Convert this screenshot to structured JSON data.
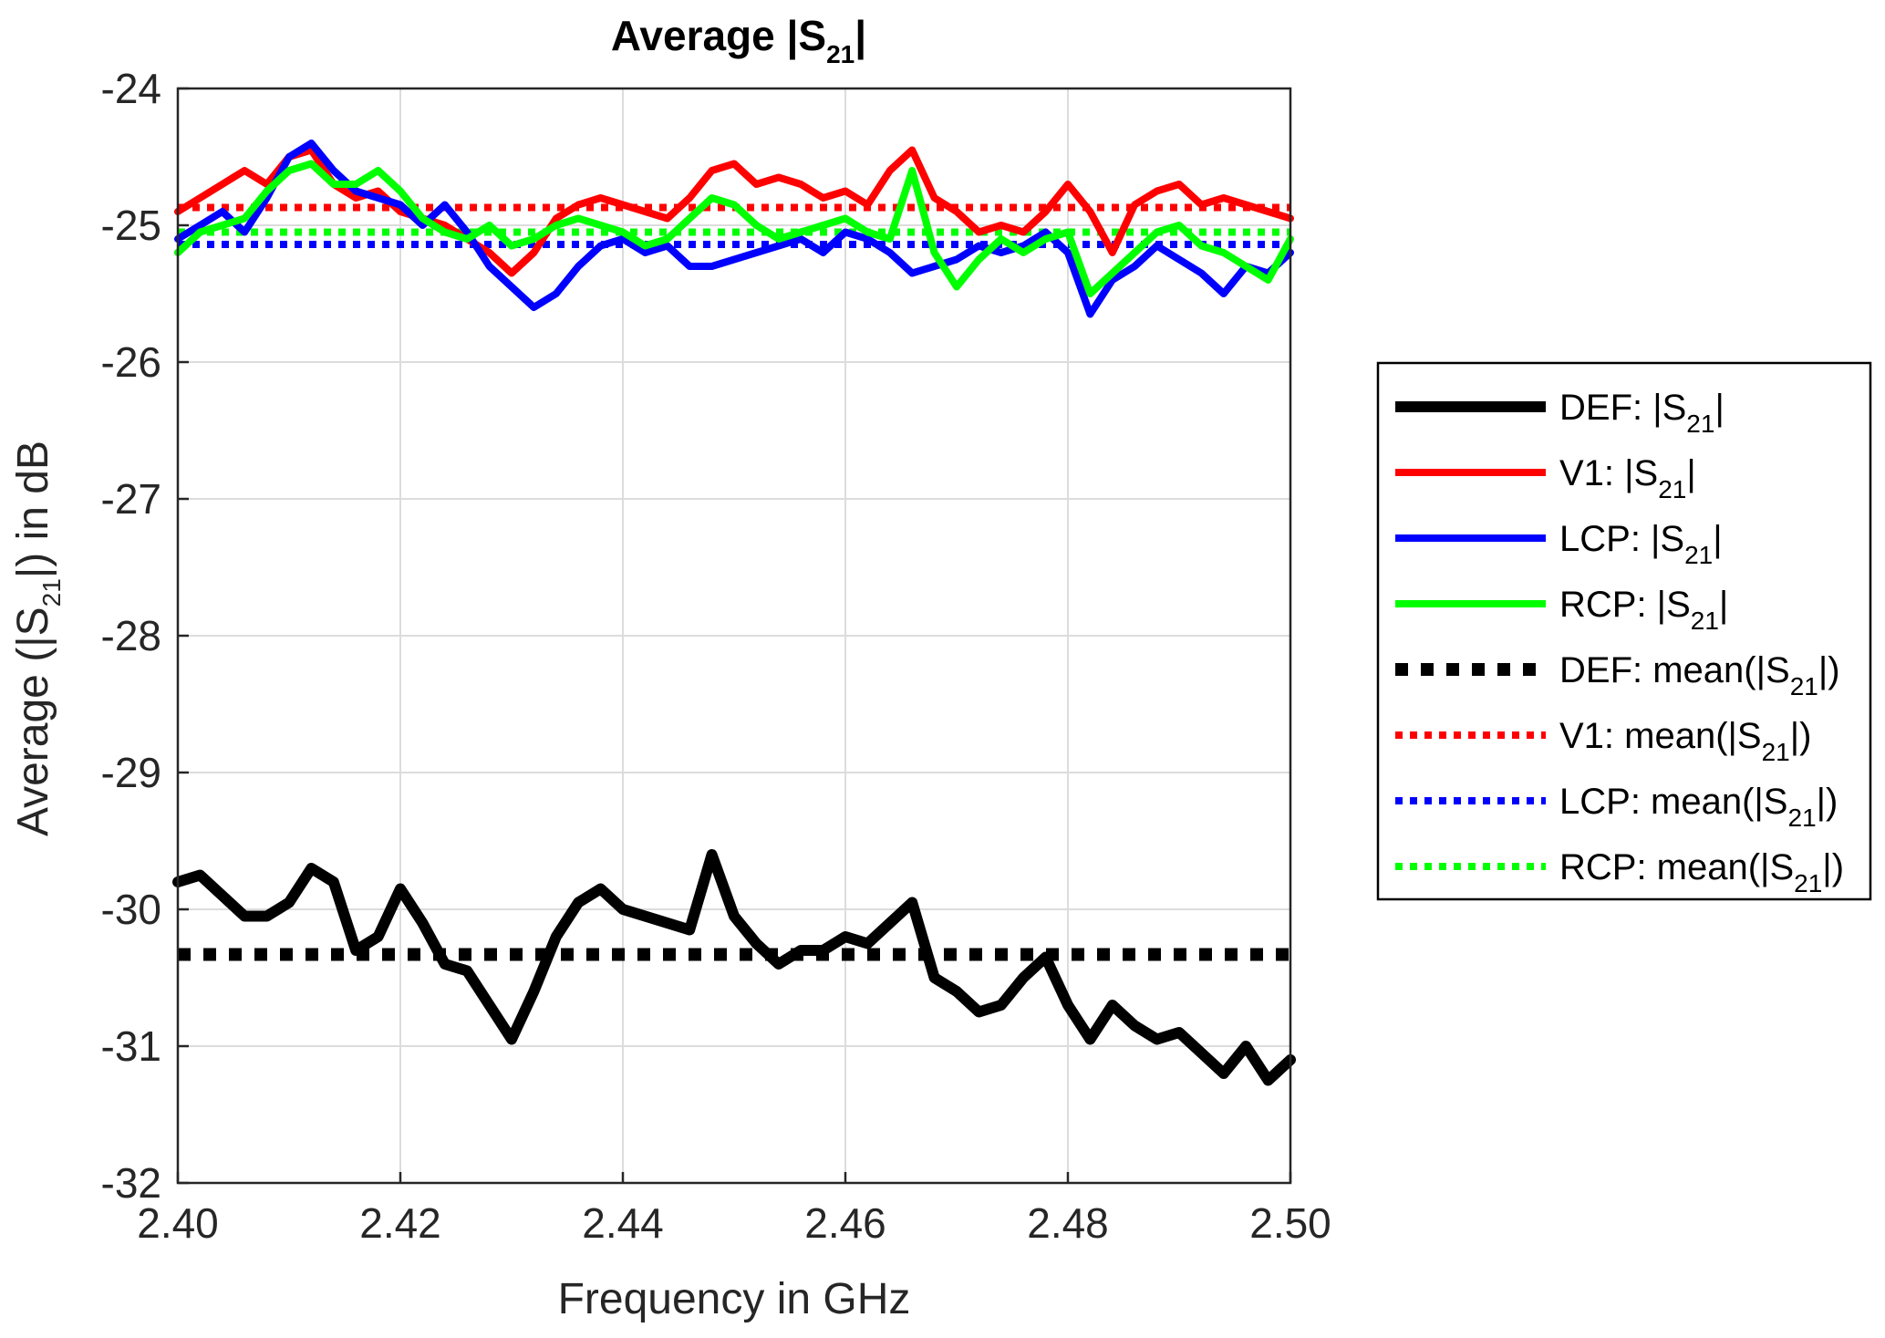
{
  "chart_data": {
    "type": "line",
    "title": {
      "prefix": "Average |S",
      "sub": "21",
      "suffix": "|"
    },
    "xlabel": "Frequency in GHz",
    "ylabel": {
      "prefix": "Average (|S",
      "sub": "21",
      "suffix": "|) in dB"
    },
    "xlim": [
      2.4,
      2.5
    ],
    "ylim": [
      -32,
      -24
    ],
    "grid": true,
    "legend_position": "outside-right",
    "x_ticks": [
      {
        "value": 2.4,
        "label": "2.40"
      },
      {
        "value": 2.42,
        "label": "2.42"
      },
      {
        "value": 2.44,
        "label": "2.44"
      },
      {
        "value": 2.46,
        "label": "2.46"
      },
      {
        "value": 2.48,
        "label": "2.48"
      },
      {
        "value": 2.5,
        "label": "2.50"
      }
    ],
    "y_ticks": [
      {
        "value": -24,
        "label": "-24"
      },
      {
        "value": -25,
        "label": "-25"
      },
      {
        "value": -26,
        "label": "-26"
      },
      {
        "value": -27,
        "label": "-27"
      },
      {
        "value": -28,
        "label": "-28"
      },
      {
        "value": -29,
        "label": "-29"
      },
      {
        "value": -30,
        "label": "-30"
      },
      {
        "value": -31,
        "label": "-31"
      },
      {
        "value": -32,
        "label": "-32"
      }
    ],
    "x": [
      2.4,
      2.402,
      2.404,
      2.406,
      2.408,
      2.41,
      2.412,
      2.414,
      2.416,
      2.418,
      2.42,
      2.422,
      2.424,
      2.426,
      2.428,
      2.43,
      2.432,
      2.434,
      2.436,
      2.438,
      2.44,
      2.442,
      2.444,
      2.446,
      2.448,
      2.45,
      2.452,
      2.454,
      2.456,
      2.458,
      2.46,
      2.462,
      2.464,
      2.466,
      2.468,
      2.47,
      2.472,
      2.474,
      2.476,
      2.478,
      2.48,
      2.482,
      2.484,
      2.486,
      2.488,
      2.49,
      2.492,
      2.494,
      2.496,
      2.498,
      2.5
    ],
    "series": [
      {
        "name": "DEF",
        "kind": "curve",
        "color": "#000000",
        "label": {
          "prefix": "DEF: |S",
          "sub": "21",
          "suffix": "|"
        },
        "values": [
          -29.8,
          -29.75,
          -29.9,
          -30.05,
          -30.05,
          -29.95,
          -29.7,
          -29.8,
          -30.3,
          -30.2,
          -29.85,
          -30.1,
          -30.4,
          -30.45,
          -30.7,
          -30.95,
          -30.6,
          -30.2,
          -29.95,
          -29.85,
          -30.0,
          -30.05,
          -30.1,
          -30.15,
          -29.6,
          -30.05,
          -30.25,
          -30.4,
          -30.3,
          -30.3,
          -30.2,
          -30.25,
          -30.1,
          -29.95,
          -30.5,
          -30.6,
          -30.75,
          -30.7,
          -30.5,
          -30.35,
          -30.7,
          -30.95,
          -30.7,
          -30.85,
          -30.95,
          -30.9,
          -31.05,
          -31.2,
          -31.0,
          -31.25,
          -31.1
        ]
      },
      {
        "name": "V1",
        "kind": "curve",
        "color": "#ff0000",
        "label": {
          "prefix": "V1: |S",
          "sub": "21",
          "suffix": "|"
        },
        "values": [
          -24.9,
          -24.8,
          -24.7,
          -24.6,
          -24.7,
          -24.5,
          -24.45,
          -24.7,
          -24.8,
          -24.75,
          -24.9,
          -24.95,
          -25.0,
          -25.1,
          -25.2,
          -25.35,
          -25.2,
          -24.95,
          -24.85,
          -24.8,
          -24.85,
          -24.9,
          -24.95,
          -24.8,
          -24.6,
          -24.55,
          -24.7,
          -24.65,
          -24.7,
          -24.8,
          -24.75,
          -24.85,
          -24.6,
          -24.45,
          -24.8,
          -24.9,
          -25.05,
          -25.0,
          -25.05,
          -24.9,
          -24.7,
          -24.9,
          -25.2,
          -24.85,
          -24.75,
          -24.7,
          -24.85,
          -24.8,
          -24.85,
          -24.9,
          -24.95
        ]
      },
      {
        "name": "LCP",
        "kind": "curve",
        "color": "#0000ff",
        "label": {
          "prefix": "LCP: |S",
          "sub": "21",
          "suffix": "|"
        },
        "values": [
          -25.1,
          -25.0,
          -24.9,
          -25.05,
          -24.8,
          -24.5,
          -24.4,
          -24.6,
          -24.75,
          -24.8,
          -24.85,
          -25.0,
          -24.85,
          -25.05,
          -25.3,
          -25.45,
          -25.6,
          -25.5,
          -25.3,
          -25.15,
          -25.1,
          -25.2,
          -25.15,
          -25.3,
          -25.3,
          -25.25,
          -25.2,
          -25.15,
          -25.1,
          -25.2,
          -25.05,
          -25.1,
          -25.2,
          -25.35,
          -25.3,
          -25.25,
          -25.15,
          -25.2,
          -25.15,
          -25.05,
          -25.2,
          -25.65,
          -25.4,
          -25.3,
          -25.15,
          -25.25,
          -25.35,
          -25.5,
          -25.3,
          -25.35,
          -25.2
        ]
      },
      {
        "name": "RCP",
        "kind": "curve",
        "color": "#00ff00",
        "label": {
          "prefix": "RCP: |S",
          "sub": "21",
          "suffix": "|"
        },
        "values": [
          -25.2,
          -25.05,
          -25.0,
          -24.95,
          -24.75,
          -24.6,
          -24.55,
          -24.7,
          -24.7,
          -24.6,
          -24.75,
          -24.95,
          -25.05,
          -25.1,
          -25.0,
          -25.15,
          -25.1,
          -25.0,
          -24.95,
          -25.0,
          -25.05,
          -25.15,
          -25.1,
          -24.95,
          -24.8,
          -24.85,
          -25.0,
          -25.1,
          -25.05,
          -25.0,
          -24.95,
          -25.05,
          -25.1,
          -24.6,
          -25.2,
          -25.45,
          -25.25,
          -25.1,
          -25.2,
          -25.1,
          -25.05,
          -25.5,
          -25.35,
          -25.2,
          -25.05,
          -25.0,
          -25.15,
          -25.2,
          -25.3,
          -25.4,
          -25.1
        ]
      },
      {
        "name": "DEF mean",
        "kind": "mean",
        "color": "#000000",
        "label": {
          "prefix": "DEF: mean(|S",
          "sub": "21",
          "suffix": "|)"
        },
        "value": -30.33
      },
      {
        "name": "V1 mean",
        "kind": "mean",
        "color": "#ff0000",
        "label": {
          "prefix": "V1: mean(|S",
          "sub": "21",
          "suffix": "|)"
        },
        "value": -24.87
      },
      {
        "name": "LCP mean",
        "kind": "mean",
        "color": "#0000ff",
        "label": {
          "prefix": "LCP: mean(|S",
          "sub": "21",
          "suffix": "|)"
        },
        "value": -25.14
      },
      {
        "name": "RCP mean",
        "kind": "mean",
        "color": "#00ff00",
        "label": {
          "prefix": "RCP: mean(|S",
          "sub": "21",
          "suffix": "|)"
        },
        "value": -25.05
      }
    ]
  }
}
